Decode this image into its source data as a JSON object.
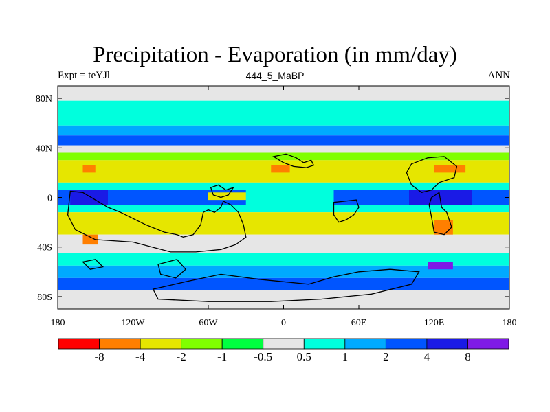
{
  "chart_data": {
    "type": "heatmap",
    "title": "Precipitation - Evaporation (in mm/day)",
    "subtitle_left": "Expt = teYJl",
    "subtitle_center": "444_5_MaBP",
    "subtitle_right": "ANN",
    "x_ticks": [
      "180",
      "120W",
      "60W",
      "0",
      "60E",
      "120E",
      "180"
    ],
    "y_ticks": [
      "80N",
      "40N",
      "0",
      "40S",
      "80S"
    ],
    "xlim": [
      -180,
      180
    ],
    "ylim": [
      -90,
      90
    ],
    "colorbar": {
      "colors": [
        "#ff0000",
        "#ff7f00",
        "#e6e600",
        "#80ff00",
        "#00ff40",
        "#e6e6e6",
        "#00ffdd",
        "#00aaff",
        "#0055ff",
        "#1a1ae6",
        "#7f1ae6"
      ],
      "labels": [
        "-8",
        "-4",
        "-2",
        "-1",
        "-0.5",
        "0.5",
        "1",
        "2",
        "4",
        "8"
      ]
    },
    "bands": [
      {
        "lat": [
          78,
          90
        ],
        "color": "#e6e6e6"
      },
      {
        "lat": [
          58,
          78
        ],
        "color": "#00ffdd"
      },
      {
        "lat": [
          50,
          58
        ],
        "color": "#00aaff"
      },
      {
        "lat": [
          42,
          50
        ],
        "color": "#0055ff"
      },
      {
        "lat": [
          36,
          42
        ],
        "color": "#e6e6e6"
      },
      {
        "lat": [
          30,
          36
        ],
        "color": "#80ff00"
      },
      {
        "lat": [
          12,
          30
        ],
        "color": "#e6e600"
      },
      {
        "lat": [
          6,
          12
        ],
        "color": "#00ffdd"
      },
      {
        "lat": [
          -6,
          6
        ],
        "color": "#0055ff"
      },
      {
        "lat": [
          -12,
          -6
        ],
        "color": "#00ffdd"
      },
      {
        "lat": [
          -30,
          -12
        ],
        "color": "#e6e600"
      },
      {
        "lat": [
          -45,
          -30
        ],
        "color": "#e6e6e6"
      },
      {
        "lat": [
          -55,
          -45
        ],
        "color": "#00ffdd"
      },
      {
        "lat": [
          -65,
          -55
        ],
        "color": "#00aaff"
      },
      {
        "lat": [
          -75,
          -65
        ],
        "color": "#0055ff"
      },
      {
        "lat": [
          -90,
          -75
        ],
        "color": "#e6e6e6"
      }
    ],
    "patches": [
      {
        "lon": [
          -160,
          -150
        ],
        "lat": [
          20,
          26
        ],
        "color": "#ff7f00"
      },
      {
        "lon": [
          -10,
          5
        ],
        "lat": [
          20,
          26
        ],
        "color": "#ff7f00"
      },
      {
        "lon": [
          120,
          145
        ],
        "lat": [
          20,
          26
        ],
        "color": "#ff7f00"
      },
      {
        "lon": [
          120,
          135
        ],
        "lat": [
          -30,
          -18
        ],
        "color": "#ff7f00"
      },
      {
        "lon": [
          -160,
          -148
        ],
        "lat": [
          -38,
          -30
        ],
        "color": "#ff7f00"
      },
      {
        "lon": [
          -60,
          -20
        ],
        "lat": [
          -2,
          4
        ],
        "color": "#e6e600"
      },
      {
        "lon": [
          -170,
          -140
        ],
        "lat": [
          -6,
          6
        ],
        "color": "#1a1ae6"
      },
      {
        "lon": [
          100,
          150
        ],
        "lat": [
          -6,
          6
        ],
        "color": "#1a1ae6"
      },
      {
        "lon": [
          115,
          135
        ],
        "lat": [
          -58,
          -52
        ],
        "color": "#7f1ae6"
      },
      {
        "lon": [
          -30,
          40
        ],
        "lat": [
          -8,
          6
        ],
        "color": "#00ffdd"
      }
    ]
  }
}
